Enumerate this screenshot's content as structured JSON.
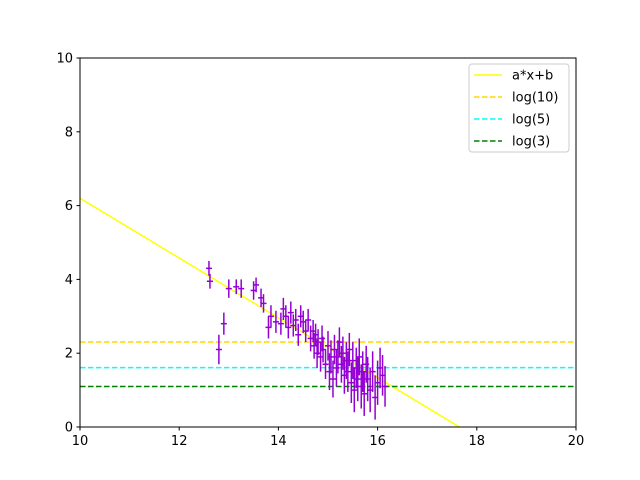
{
  "chart_data": {
    "type": "scatter",
    "xlim": [
      10,
      20
    ],
    "ylim": [
      0,
      10
    ],
    "x_ticks": [
      "10",
      "12",
      "14",
      "16",
      "18",
      "20"
    ],
    "y_ticks": [
      "0",
      "2",
      "4",
      "6",
      "8",
      "10"
    ],
    "grid": false,
    "legend_placement": "top-right",
    "lines": [
      {
        "name": "a*x+b",
        "kind": "linear",
        "x0": 10,
        "y0": 6.2,
        "x1": 17.65,
        "y1": 0,
        "style": "solid",
        "color": "#ffff00"
      },
      {
        "name": "log(10)",
        "kind": "hline",
        "y": 2.3026,
        "style": "dashed",
        "color": "#ffd700"
      },
      {
        "name": "log(5)",
        "kind": "hline",
        "y": 1.6094,
        "style": "dashed",
        "color": "#00ffff"
      },
      {
        "name": "log(3)",
        "kind": "hline",
        "y": 1.0986,
        "style": "dashed",
        "color": "#008000"
      }
    ],
    "points_color": "#9400d3",
    "points": [
      {
        "x": 12.6,
        "y": 4.3,
        "err": 0.2
      },
      {
        "x": 12.62,
        "y": 3.95,
        "err": 0.2
      },
      {
        "x": 12.8,
        "y": 2.1,
        "err": 0.4
      },
      {
        "x": 12.9,
        "y": 2.8,
        "err": 0.3
      },
      {
        "x": 13.0,
        "y": 3.75,
        "err": 0.25
      },
      {
        "x": 13.15,
        "y": 3.8,
        "err": 0.2
      },
      {
        "x": 13.25,
        "y": 3.75,
        "err": 0.25
      },
      {
        "x": 13.5,
        "y": 3.7,
        "err": 0.25
      },
      {
        "x": 13.55,
        "y": 3.85,
        "err": 0.2
      },
      {
        "x": 13.65,
        "y": 3.5,
        "err": 0.25
      },
      {
        "x": 13.7,
        "y": 3.35,
        "err": 0.25
      },
      {
        "x": 13.8,
        "y": 2.7,
        "err": 0.3
      },
      {
        "x": 13.85,
        "y": 3.0,
        "err": 0.3
      },
      {
        "x": 13.95,
        "y": 2.85,
        "err": 0.3
      },
      {
        "x": 14.05,
        "y": 2.8,
        "err": 0.3
      },
      {
        "x": 14.1,
        "y": 3.2,
        "err": 0.3
      },
      {
        "x": 14.15,
        "y": 3.0,
        "err": 0.3
      },
      {
        "x": 14.2,
        "y": 2.7,
        "err": 0.3
      },
      {
        "x": 14.25,
        "y": 3.1,
        "err": 0.3
      },
      {
        "x": 14.3,
        "y": 2.75,
        "err": 0.3
      },
      {
        "x": 14.35,
        "y": 2.9,
        "err": 0.3
      },
      {
        "x": 14.4,
        "y": 2.5,
        "err": 0.3
      },
      {
        "x": 14.45,
        "y": 3.0,
        "err": 0.3
      },
      {
        "x": 14.5,
        "y": 2.85,
        "err": 0.3
      },
      {
        "x": 14.55,
        "y": 2.6,
        "err": 0.3
      },
      {
        "x": 14.6,
        "y": 2.9,
        "err": 0.3
      },
      {
        "x": 14.65,
        "y": 2.4,
        "err": 0.35
      },
      {
        "x": 14.7,
        "y": 2.6,
        "err": 0.3
      },
      {
        "x": 14.72,
        "y": 2.2,
        "err": 0.35
      },
      {
        "x": 14.75,
        "y": 2.5,
        "err": 0.3
      },
      {
        "x": 14.78,
        "y": 2.0,
        "err": 0.4
      },
      {
        "x": 14.8,
        "y": 2.3,
        "err": 0.35
      },
      {
        "x": 14.85,
        "y": 1.9,
        "err": 0.4
      },
      {
        "x": 14.88,
        "y": 2.4,
        "err": 0.35
      },
      {
        "x": 14.9,
        "y": 2.1,
        "err": 0.35
      },
      {
        "x": 14.95,
        "y": 1.7,
        "err": 0.4
      },
      {
        "x": 15.0,
        "y": 2.2,
        "err": 0.4
      },
      {
        "x": 15.03,
        "y": 1.5,
        "err": 0.5
      },
      {
        "x": 15.06,
        "y": 1.9,
        "err": 0.45
      },
      {
        "x": 15.1,
        "y": 1.3,
        "err": 0.5
      },
      {
        "x": 15.13,
        "y": 2.1,
        "err": 0.4
      },
      {
        "x": 15.17,
        "y": 1.6,
        "err": 0.5
      },
      {
        "x": 15.2,
        "y": 1.9,
        "err": 0.45
      },
      {
        "x": 15.23,
        "y": 2.3,
        "err": 0.4
      },
      {
        "x": 15.27,
        "y": 1.7,
        "err": 0.5
      },
      {
        "x": 15.3,
        "y": 2.0,
        "err": 0.45
      },
      {
        "x": 15.33,
        "y": 1.4,
        "err": 0.5
      },
      {
        "x": 15.37,
        "y": 1.8,
        "err": 0.5
      },
      {
        "x": 15.4,
        "y": 1.5,
        "err": 0.55
      },
      {
        "x": 15.43,
        "y": 2.1,
        "err": 0.45
      },
      {
        "x": 15.47,
        "y": 1.2,
        "err": 0.55
      },
      {
        "x": 15.5,
        "y": 1.8,
        "err": 0.5
      },
      {
        "x": 15.53,
        "y": 1.0,
        "err": 0.6
      },
      {
        "x": 15.57,
        "y": 1.6,
        "err": 0.55
      },
      {
        "x": 15.6,
        "y": 1.3,
        "err": 0.6
      },
      {
        "x": 15.63,
        "y": 1.9,
        "err": 0.5
      },
      {
        "x": 15.67,
        "y": 1.1,
        "err": 0.6
      },
      {
        "x": 15.7,
        "y": 1.5,
        "err": 0.55
      },
      {
        "x": 15.73,
        "y": 0.9,
        "err": 0.6
      },
      {
        "x": 15.77,
        "y": 1.7,
        "err": 0.5
      },
      {
        "x": 15.8,
        "y": 1.3,
        "err": 0.6
      },
      {
        "x": 15.85,
        "y": 1.0,
        "err": 0.6
      },
      {
        "x": 15.9,
        "y": 1.5,
        "err": 0.55
      },
      {
        "x": 15.95,
        "y": 0.8,
        "err": 0.6
      },
      {
        "x": 16.0,
        "y": 1.2,
        "err": 0.6
      },
      {
        "x": 16.05,
        "y": 1.6,
        "err": 0.55
      },
      {
        "x": 16.1,
        "y": 1.4,
        "err": 0.55
      },
      {
        "x": 16.15,
        "y": 1.1,
        "err": 0.55
      }
    ]
  }
}
